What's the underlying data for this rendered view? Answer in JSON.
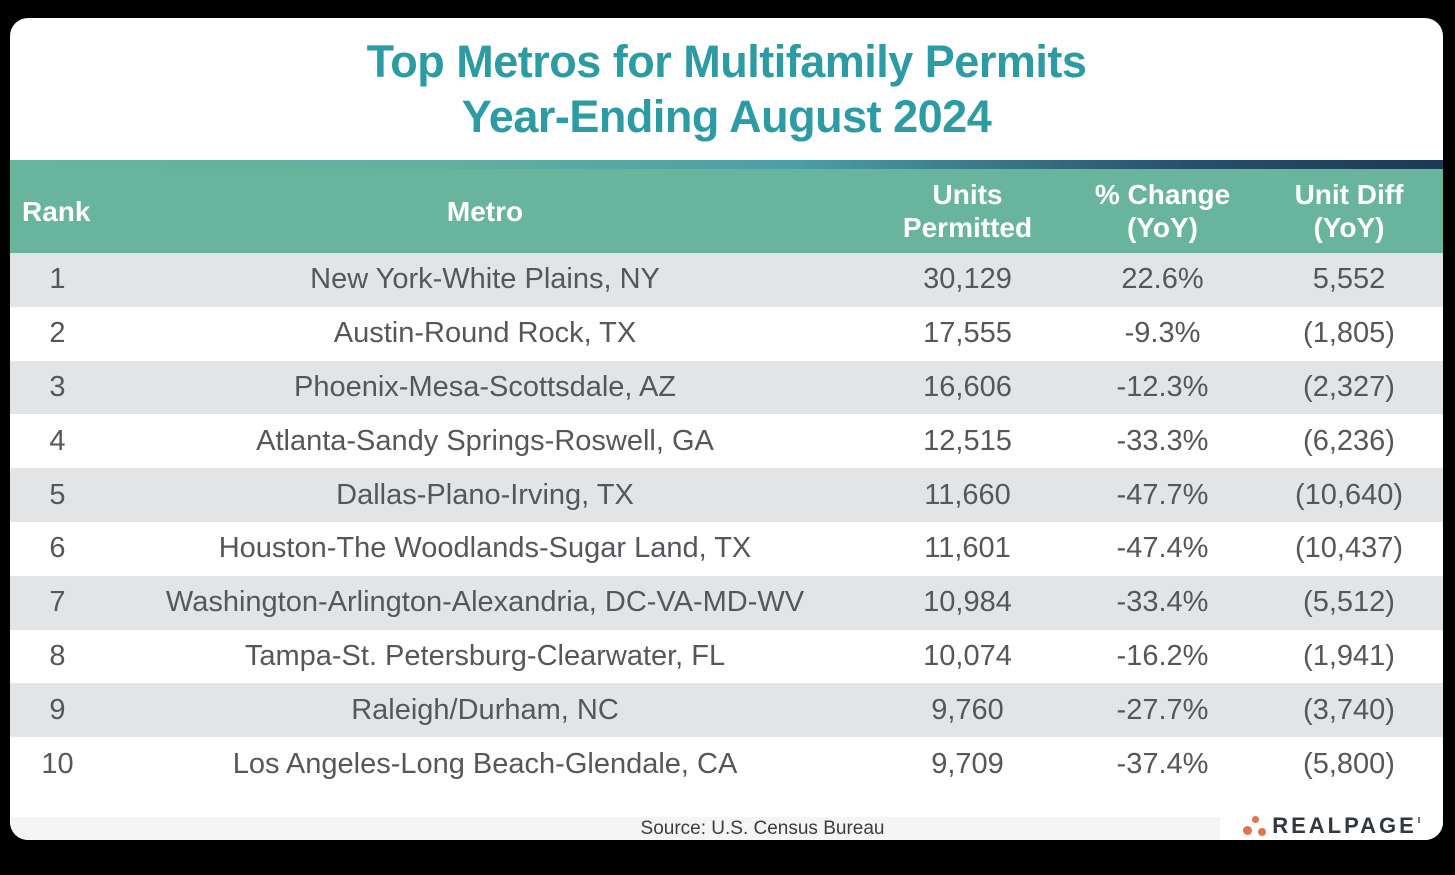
{
  "title": {
    "line1": "Top Metros for Multifamily Permits",
    "line2": "Year-Ending August 2024"
  },
  "table": {
    "header": {
      "rank": "Rank",
      "metro": "Metro",
      "units_line1": "Units",
      "units_line2": "Permitted",
      "change_line1": "% Change",
      "change_line2": "(YoY)",
      "diff_line1": "Unit Diff",
      "diff_line2": "(YoY)"
    },
    "rows": [
      {
        "rank": "1",
        "metro": "New York-White Plains, NY",
        "units": "30,129",
        "change": "22.6%",
        "diff": "5,552"
      },
      {
        "rank": "2",
        "metro": "Austin-Round Rock, TX",
        "units": "17,555",
        "change": "-9.3%",
        "diff": "(1,805)"
      },
      {
        "rank": "3",
        "metro": "Phoenix-Mesa-Scottsdale, AZ",
        "units": "16,606",
        "change": "-12.3%",
        "diff": "(2,327)"
      },
      {
        "rank": "4",
        "metro": "Atlanta-Sandy Springs-Roswell, GA",
        "units": "12,515",
        "change": "-33.3%",
        "diff": "(6,236)"
      },
      {
        "rank": "5",
        "metro": "Dallas-Plano-Irving, TX",
        "units": "11,660",
        "change": "-47.7%",
        "diff": "(10,640)"
      },
      {
        "rank": "6",
        "metro": "Houston-The Woodlands-Sugar Land, TX",
        "units": "11,601",
        "change": "-47.4%",
        "diff": "(10,437)"
      },
      {
        "rank": "7",
        "metro": "Washington-Arlington-Alexandria, DC-VA-MD-WV",
        "units": "10,984",
        "change": "-33.4%",
        "diff": "(5,512)"
      },
      {
        "rank": "8",
        "metro": "Tampa-St. Petersburg-Clearwater, FL",
        "units": "10,074",
        "change": "-16.2%",
        "diff": "(1,941)"
      },
      {
        "rank": "9",
        "metro": "Raleigh/Durham, NC",
        "units": "9,760",
        "change": "-27.7%",
        "diff": "(3,740)"
      },
      {
        "rank": "10",
        "metro": "Los Angeles-Long Beach-Glendale, CA",
        "units": "9,709",
        "change": "-37.4%",
        "diff": "(5,800)"
      }
    ]
  },
  "footer": {
    "source": "Source: U.S. Census Bureau",
    "logo_text": "REALPAGE"
  },
  "colors": {
    "background": "#000000",
    "card": "#FFFFFF",
    "title_teal": "#2D9BA4",
    "header_green": "#68B49D",
    "gradient_navy": "#1C3952",
    "zebra_gray": "#E3E4E6",
    "row_text": "#55575B",
    "source_bar": "#F5F5F6",
    "logo_orange": "#E8704D",
    "logo_charcoal": "#33383D"
  },
  "chart_data": {
    "type": "table",
    "title": "Top Metros for Multifamily Permits Year-Ending August 2024",
    "columns": [
      "Rank",
      "Metro",
      "Units Permitted",
      "% Change (YoY)",
      "Unit Diff (YoY)"
    ],
    "rows": [
      [
        1,
        "New York-White Plains, NY",
        30129,
        22.6,
        5552
      ],
      [
        2,
        "Austin-Round Rock, TX",
        17555,
        -9.3,
        -1805
      ],
      [
        3,
        "Phoenix-Mesa-Scottsdale, AZ",
        16606,
        -12.3,
        -2327
      ],
      [
        4,
        "Atlanta-Sandy Springs-Roswell, GA",
        12515,
        -33.3,
        -6236
      ],
      [
        5,
        "Dallas-Plano-Irving, TX",
        11660,
        -47.7,
        -10640
      ],
      [
        6,
        "Houston-The Woodlands-Sugar Land, TX",
        11601,
        -47.4,
        -10437
      ],
      [
        7,
        "Washington-Arlington-Alexandria, DC-VA-MD-WV",
        10984,
        -33.4,
        -5512
      ],
      [
        8,
        "Tampa-St. Petersburg-Clearwater, FL",
        10074,
        -16.2,
        -1941
      ],
      [
        9,
        "Raleigh/Durham, NC",
        9760,
        -27.7,
        -3740
      ],
      [
        10,
        "Los Angeles-Long Beach-Glendale, CA",
        9709,
        -37.4,
        -5800
      ]
    ],
    "notes": "Negative Unit Diff values displayed in parentheses; zebra-striped static table",
    "source": "Source: U.S. Census Bureau"
  }
}
